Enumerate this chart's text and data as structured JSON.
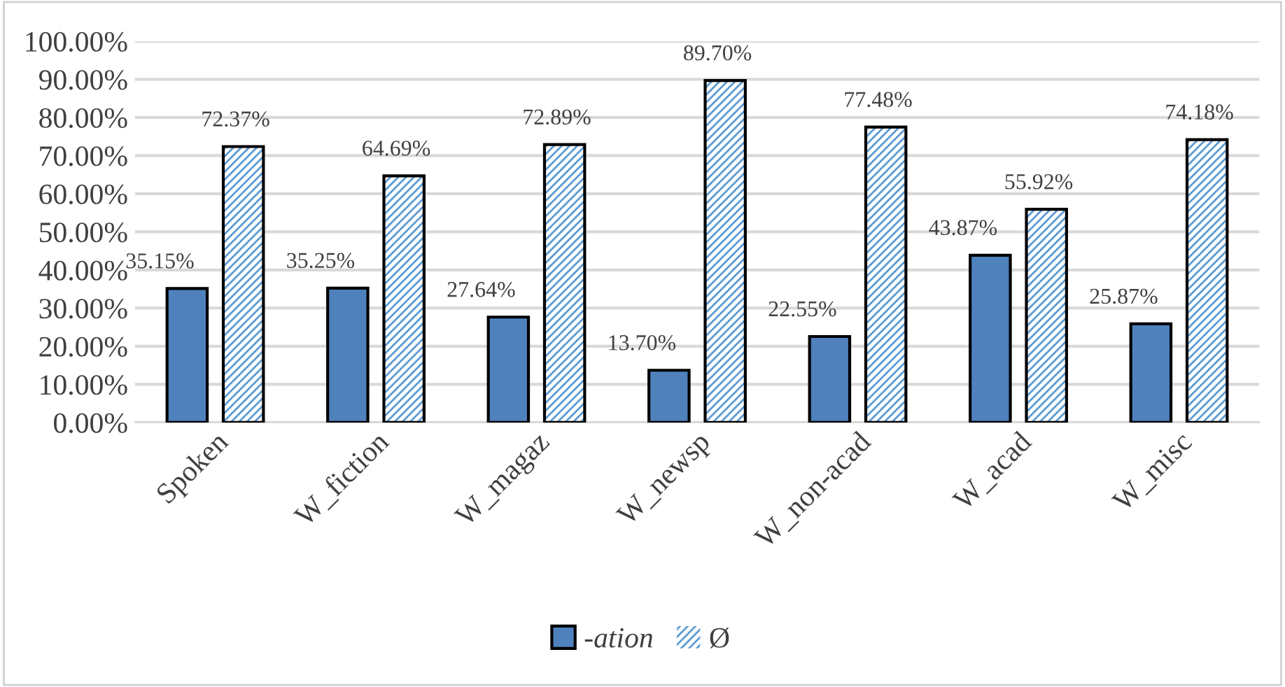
{
  "chart_data": {
    "type": "bar",
    "categories": [
      "Spoken",
      "W_fiction",
      "W_magaz",
      "W_newsp",
      "W_non-acad",
      "W_acad",
      "W_misc"
    ],
    "series": [
      {
        "name": "-ation",
        "color": "#4f81bd",
        "values": [
          35.15,
          35.25,
          27.64,
          13.7,
          22.55,
          43.87,
          25.87
        ],
        "value_labels": [
          "35.15%",
          "35.25%",
          "27.64%",
          "13.70%",
          "22.55%",
          "43.87%",
          "25.87%"
        ]
      },
      {
        "name": "Ø",
        "color": "#5b9bd5",
        "values": [
          72.37,
          64.69,
          72.89,
          89.7,
          77.48,
          55.92,
          74.18
        ],
        "value_labels": [
          "72.37%",
          "64.69%",
          "72.89%",
          "89.70%",
          "77.48%",
          "55.92%",
          "74.18%"
        ]
      }
    ],
    "ylim": [
      0,
      100
    ],
    "yticks": [
      {
        "value": 0,
        "label": "0.00%"
      },
      {
        "value": 10,
        "label": "10.00%"
      },
      {
        "value": 20,
        "label": "20.00%"
      },
      {
        "value": 30,
        "label": "30.00%"
      },
      {
        "value": 40,
        "label": "40.00%"
      },
      {
        "value": 50,
        "label": "50.00%"
      },
      {
        "value": 60,
        "label": "60.00%"
      },
      {
        "value": 70,
        "label": "70.00%"
      },
      {
        "value": 80,
        "label": "80.00%"
      },
      {
        "value": 90,
        "label": "90.00%"
      },
      {
        "value": 100,
        "label": "100.00%"
      }
    ],
    "grid": "y",
    "legend": "bottom"
  }
}
